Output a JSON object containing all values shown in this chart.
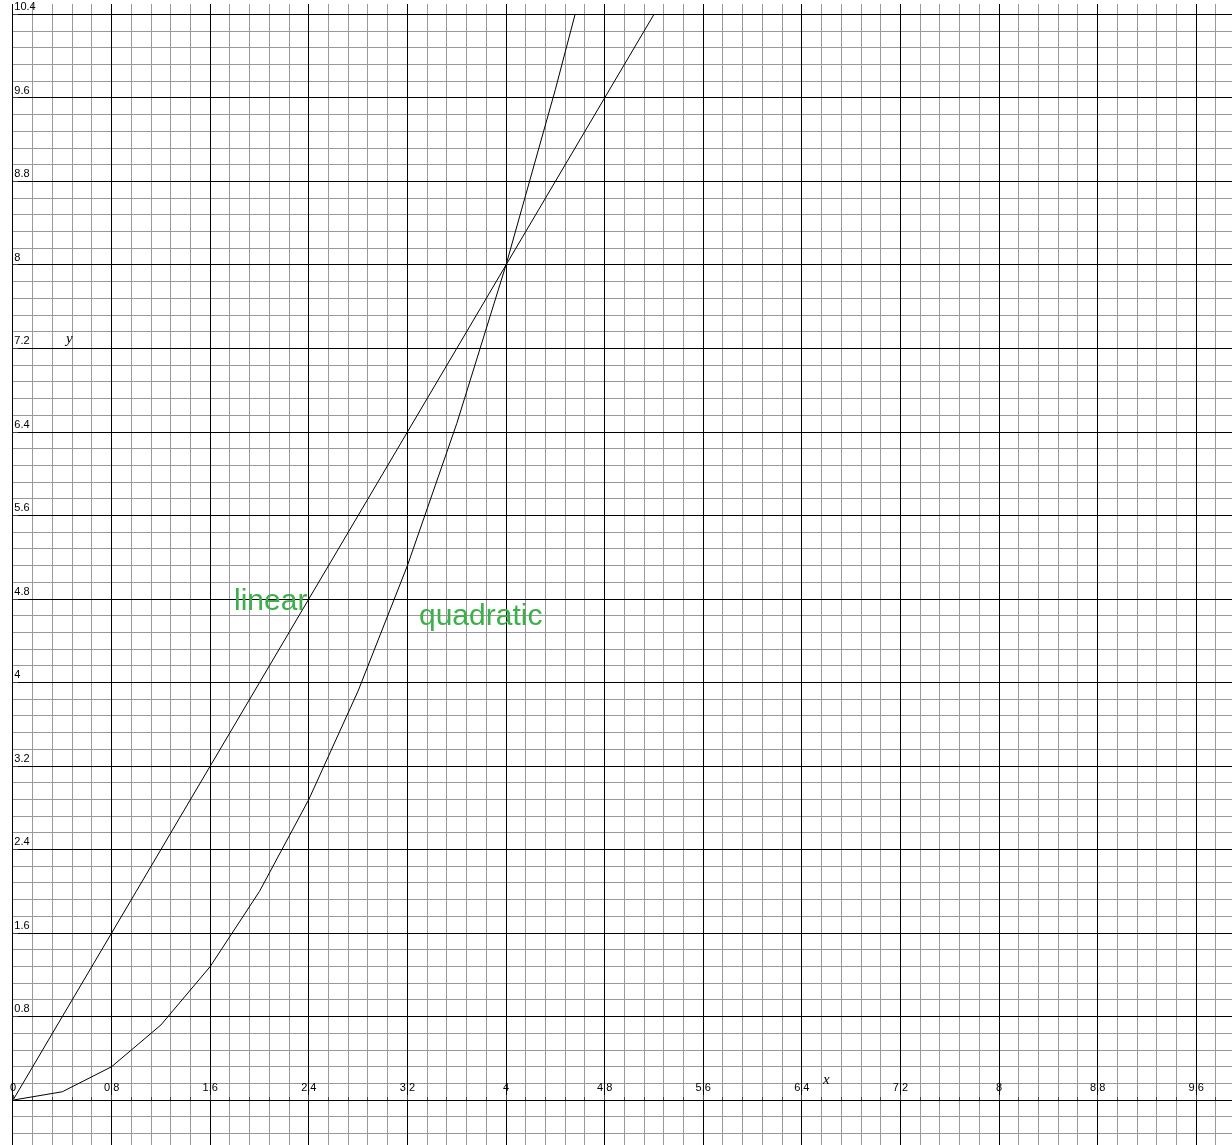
{
  "chart_data": {
    "type": "line",
    "xlabel": "x",
    "ylabel": "y",
    "xlim": [
      0,
      9.89
    ],
    "ylim": [
      -0.43,
      10.5
    ],
    "xticks": [
      0,
      0.8,
      1.6,
      2.4,
      3.2,
      4,
      4.8,
      5.6,
      6.4,
      7.2,
      8,
      8.8,
      9.6
    ],
    "yticks": [
      0.8,
      1.6,
      2.4,
      3.2,
      4,
      4.8,
      5.6,
      6.4,
      7.2,
      8,
      8.8,
      9.6,
      10.4
    ],
    "grid": true,
    "legend": false,
    "marker": "none",
    "line_style": "solid",
    "series": [
      {
        "name": "linear",
        "color": "#000000",
        "x": [
          0,
          1,
          2,
          2.4,
          3,
          4,
          5,
          5.2
        ],
        "values": [
          0,
          2,
          4,
          4.8,
          6,
          8,
          10,
          10.4
        ]
      },
      {
        "name": "quadratic",
        "color": "#000000",
        "x": [
          0,
          0.4,
          0.8,
          1.2,
          1.6,
          2.0,
          2.4,
          2.8,
          3.2,
          3.6,
          4.0,
          4.4,
          4.56
        ],
        "values": [
          0,
          0.08,
          0.32,
          0.72,
          1.28,
          2,
          2.88,
          3.92,
          5.12,
          6.48,
          8,
          9.68,
          10.4
        ]
      }
    ]
  }
}
